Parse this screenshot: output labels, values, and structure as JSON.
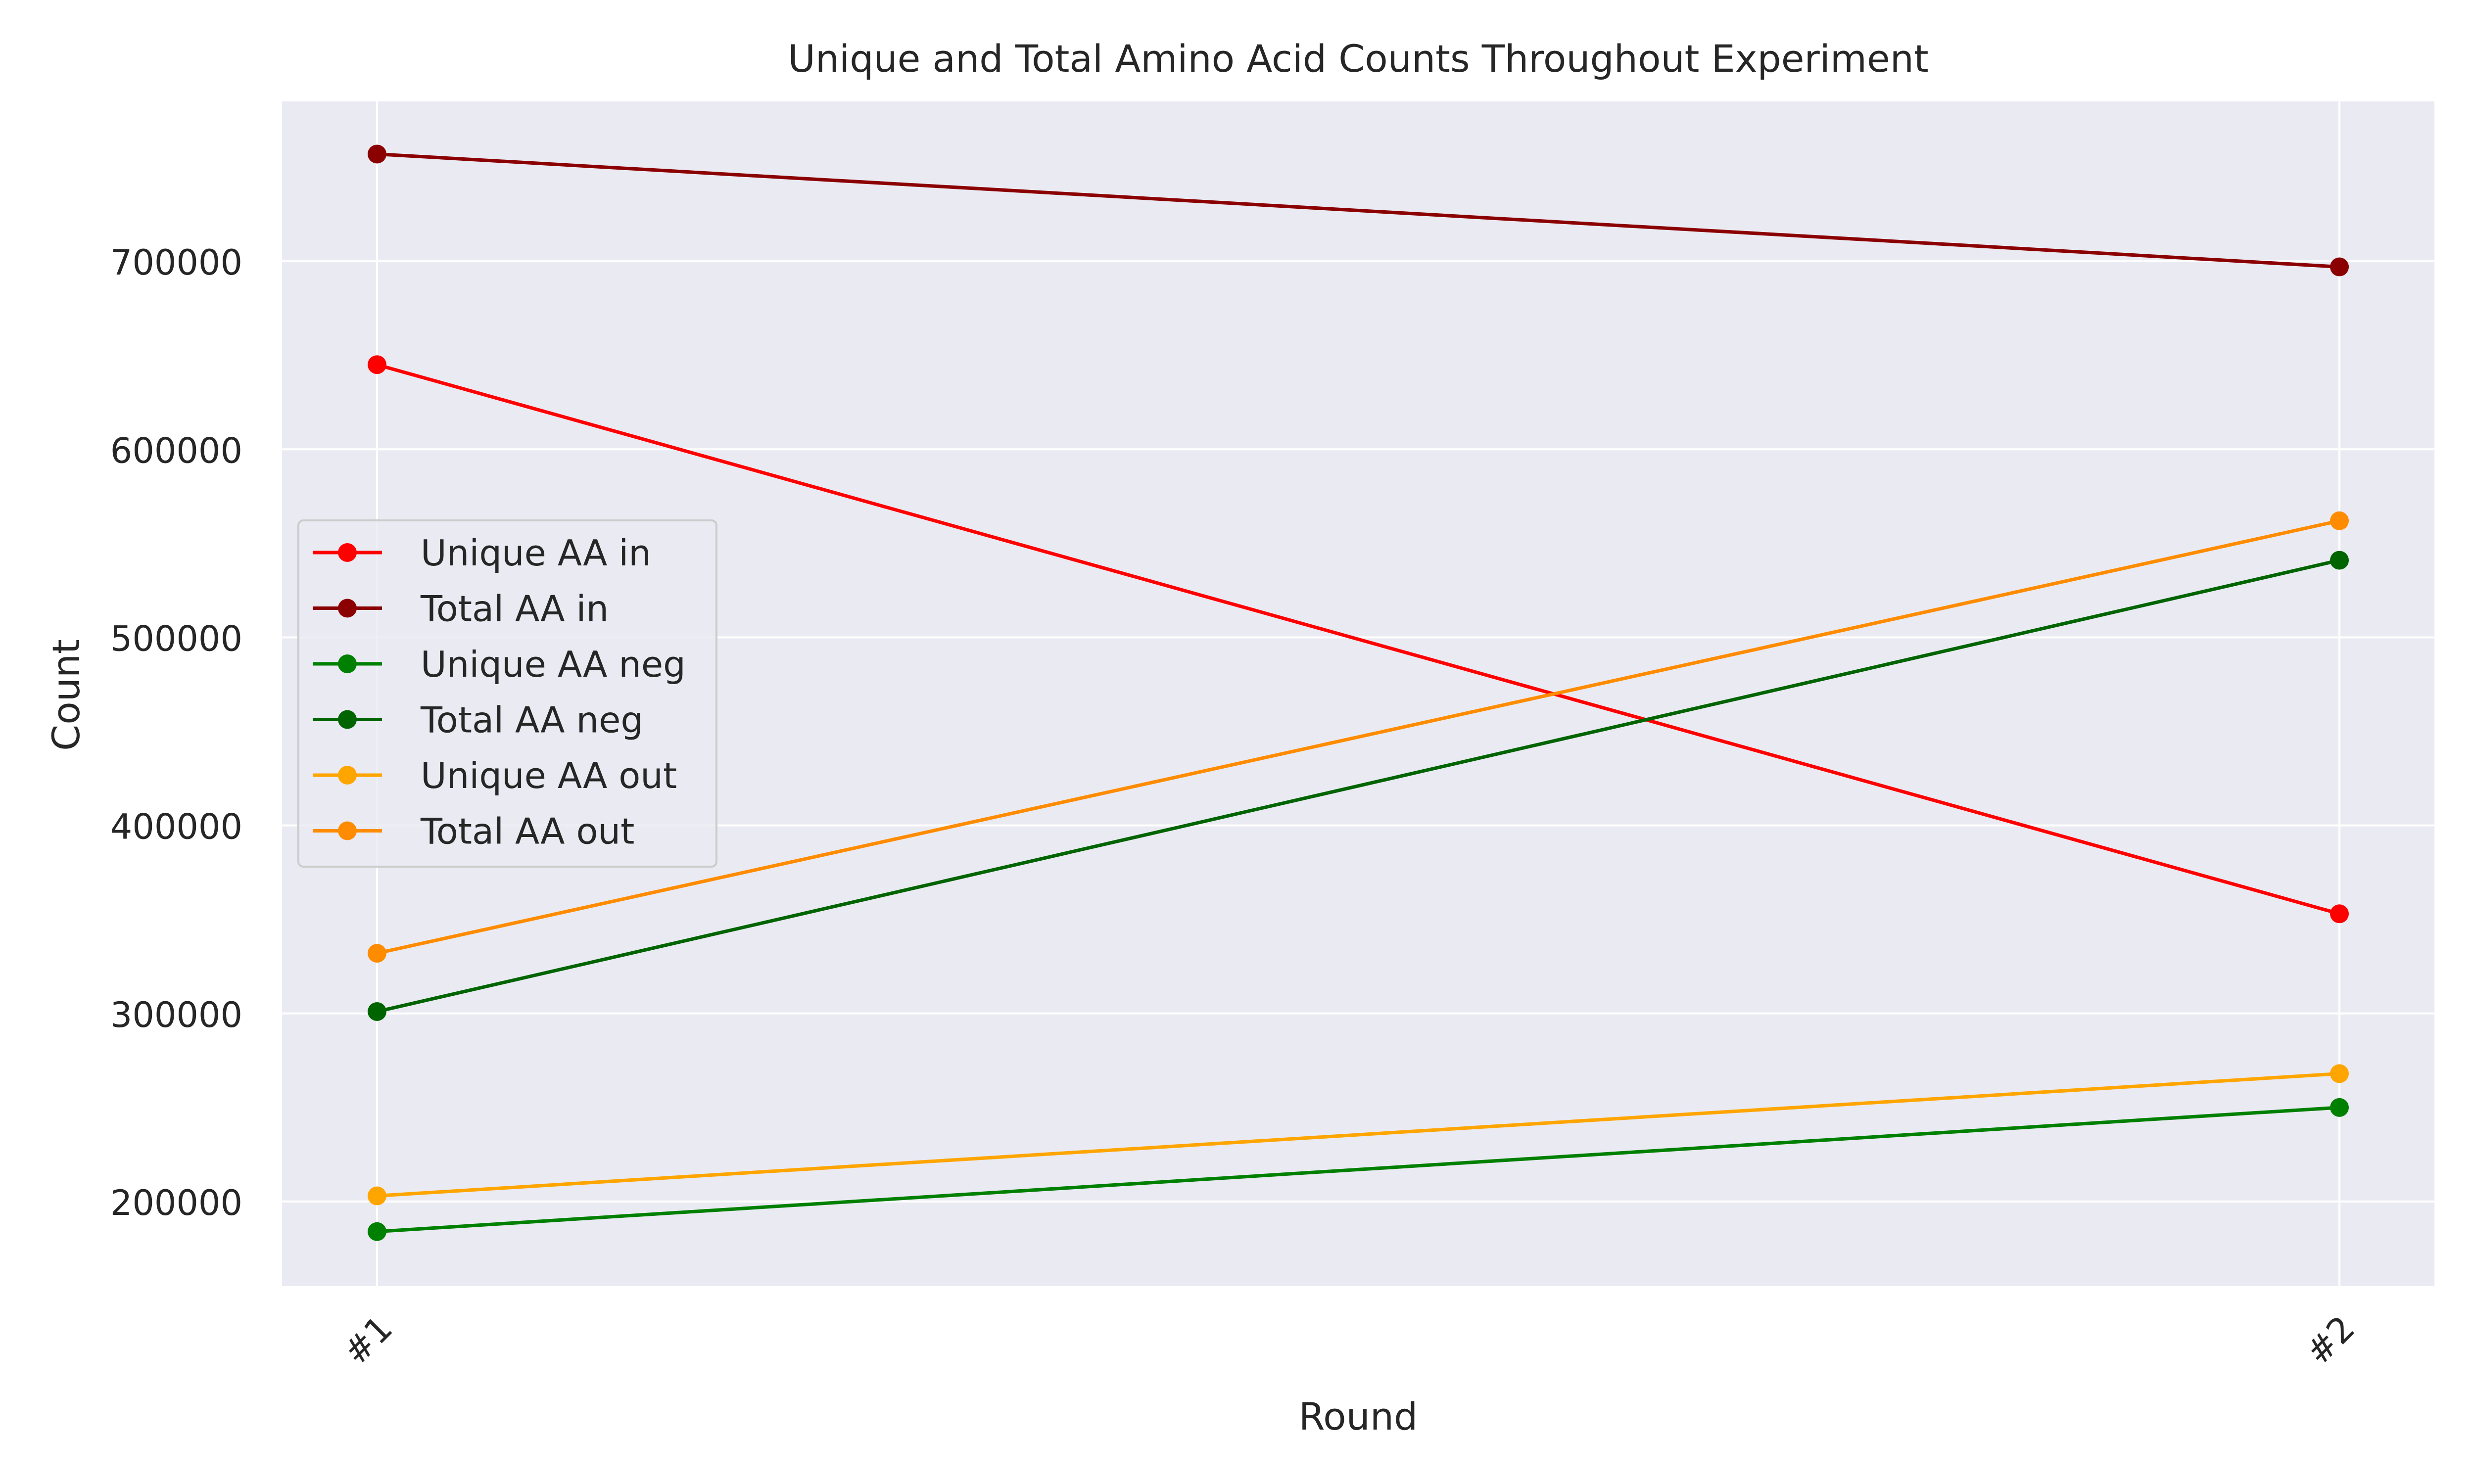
{
  "chart_data": {
    "type": "line",
    "title": "Unique and Total Amino Acid Counts Throughout Experiment",
    "xlabel": "Round",
    "ylabel": "Count",
    "categories": [
      "#1",
      "#2"
    ],
    "ylim": [
      155000,
      785000
    ],
    "yticks": [
      200000,
      300000,
      400000,
      500000,
      600000,
      700000
    ],
    "ytick_labels": [
      "200000",
      "300000",
      "400000",
      "500000",
      "600000",
      "700000"
    ],
    "grid": true,
    "legend_position": "center-left",
    "series": [
      {
        "name": "Unique AA in",
        "values": [
          645000,
          353000
        ],
        "color": "#ff0000"
      },
      {
        "name": "Total AA in",
        "values": [
          757000,
          697000
        ],
        "color": "#8b0000"
      },
      {
        "name": "Unique AA neg",
        "values": [
          184000,
          250000
        ],
        "color": "#008000"
      },
      {
        "name": "Total AA neg",
        "values": [
          301000,
          541000
        ],
        "color": "#006400"
      },
      {
        "name": "Unique AA out",
        "values": [
          203000,
          268000
        ],
        "color": "#ffa500"
      },
      {
        "name": "Total AA out",
        "values": [
          332000,
          562000
        ],
        "color": "#ff8c00"
      }
    ],
    "colors": {
      "plot_background": "#eaeaf2",
      "grid": "#ffffff"
    }
  }
}
